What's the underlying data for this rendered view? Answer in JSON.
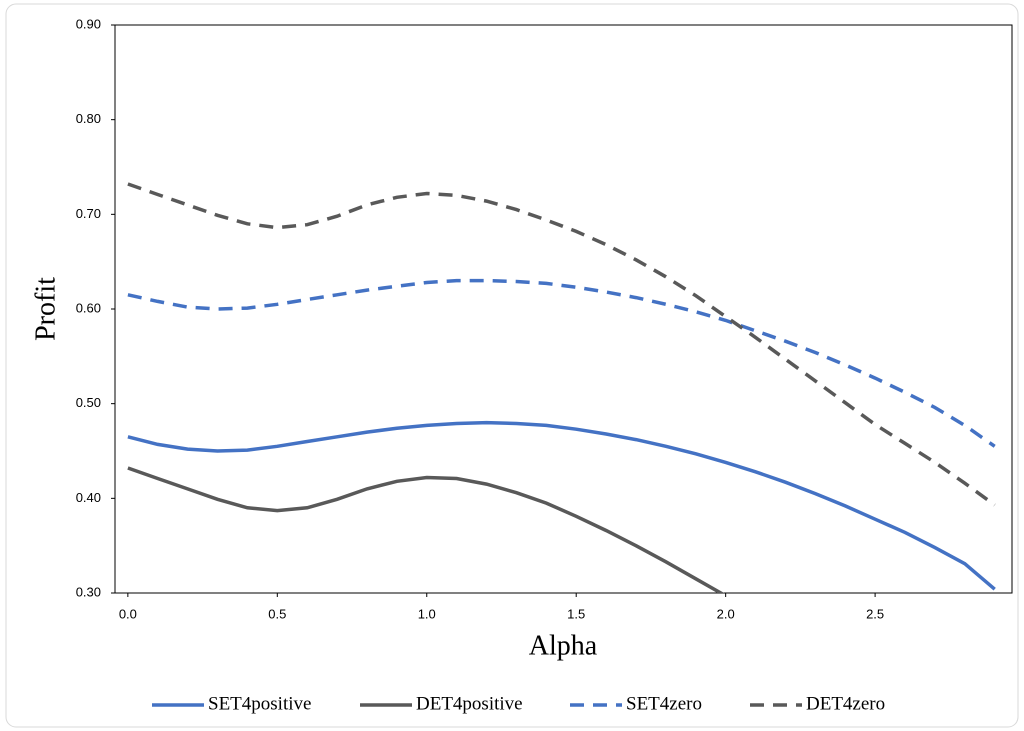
{
  "chart_data": {
    "type": "line",
    "xlabel": "Alpha",
    "ylabel": "Profit",
    "x": [
      0,
      0.1,
      0.2,
      0.3,
      0.4,
      0.5,
      0.6,
      0.7,
      0.8,
      0.9,
      1.0,
      1.1,
      1.2,
      1.3,
      1.4,
      1.5,
      1.6,
      1.7,
      1.8,
      1.9,
      2.0,
      2.1,
      2.2,
      2.3,
      2.4,
      2.5,
      2.6,
      2.7,
      2.8,
      2.9
    ],
    "series": [
      {
        "name": "SET4positive",
        "color": "#4472c4",
        "dashed": false,
        "values": [
          0.465,
          0.457,
          0.452,
          0.45,
          0.451,
          0.455,
          0.46,
          0.465,
          0.47,
          0.474,
          0.477,
          0.479,
          0.48,
          0.479,
          0.477,
          0.473,
          0.468,
          0.462,
          0.455,
          0.447,
          0.438,
          0.428,
          0.417,
          0.405,
          0.392,
          0.378,
          0.364,
          0.348,
          0.331,
          0.304
        ]
      },
      {
        "name": "DET4positive",
        "color": "#595959",
        "dashed": false,
        "values": [
          0.432,
          0.421,
          0.41,
          0.399,
          0.39,
          0.387,
          0.39,
          0.399,
          0.41,
          0.418,
          0.422,
          0.421,
          0.415,
          0.406,
          0.395,
          0.381,
          0.366,
          0.35,
          0.333,
          0.315,
          0.297,
          null,
          null,
          null,
          null,
          null,
          null,
          null,
          null,
          null
        ]
      },
      {
        "name": "SET4zero",
        "color": "#4472c4",
        "dashed": true,
        "values": [
          0.615,
          0.608,
          0.602,
          0.6,
          0.601,
          0.605,
          0.61,
          0.615,
          0.62,
          0.624,
          0.628,
          0.63,
          0.63,
          0.629,
          0.627,
          0.623,
          0.618,
          0.612,
          0.605,
          0.597,
          0.588,
          0.577,
          0.566,
          0.554,
          0.541,
          0.527,
          0.512,
          0.496,
          0.477,
          0.455
        ]
      },
      {
        "name": "DET4zero",
        "color": "#595959",
        "dashed": true,
        "values": [
          0.732,
          0.721,
          0.71,
          0.699,
          0.69,
          0.686,
          0.689,
          0.698,
          0.71,
          0.718,
          0.722,
          0.72,
          0.714,
          0.705,
          0.694,
          0.682,
          0.668,
          0.652,
          0.634,
          0.614,
          0.592,
          0.57,
          0.547,
          0.524,
          0.501,
          0.478,
          0.458,
          0.438,
          0.416,
          0.393
        ]
      }
    ],
    "xlim": [
      -0.043,
      2.958
    ],
    "xticks": [
      {
        "value": 0,
        "label": "0.0"
      },
      0.5,
      {
        "value": 1,
        "label": "1.0"
      },
      1.5,
      {
        "value": 2,
        "label": "2.0"
      },
      2.5
    ],
    "ylim": [
      0.3,
      0.9
    ],
    "yticks": [
      {
        "value": 0.3,
        "label": "0.30"
      },
      {
        "value": 0.4,
        "label": "0.40"
      },
      {
        "value": 0.5,
        "label": "0.50"
      },
      {
        "value": 0.6,
        "label": "0.60"
      },
      {
        "value": 0.7,
        "label": "0.70"
      },
      {
        "value": 0.8,
        "label": "0.80"
      },
      {
        "value": 0.9,
        "label": "0.90"
      }
    ],
    "grid": false,
    "legend": "bottom"
  }
}
